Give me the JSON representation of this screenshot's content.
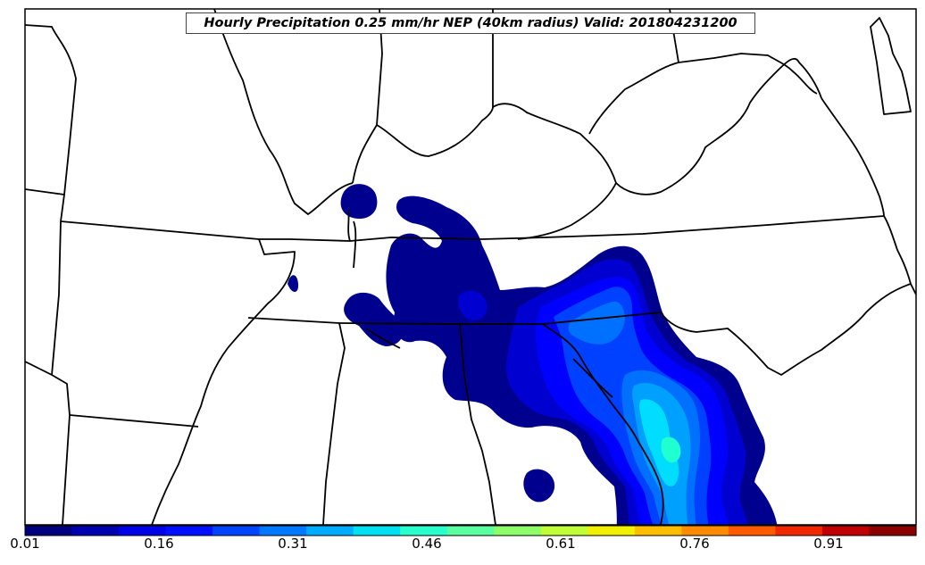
{
  "title": "Hourly Precipitation 0.25 mm/hr NEP (40km radius) Valid: 201804231200",
  "colorbar": {
    "colors": [
      "#00007f",
      "#0000b0",
      "#0000e6",
      "#0010ff",
      "#0044ff",
      "#0078ff",
      "#00acff",
      "#00e0f0",
      "#29ffce",
      "#5affa0",
      "#8dff6a",
      "#c0ff37",
      "#f0f000",
      "#ffbf00",
      "#ff8c00",
      "#ff5a00",
      "#f02800",
      "#c00000",
      "#8b0000"
    ],
    "ticks": [
      "0.01",
      "0.16",
      "0.31",
      "0.46",
      "0.61",
      "0.76",
      "0.91"
    ]
  },
  "map_layers": {
    "base": "white land with black state boundaries and coastlines",
    "fill_levels": [
      "#00008f",
      "#0000d0",
      "#0000ff",
      "#0040ff",
      "#0070ff",
      "#00a0ff",
      "#00ddff",
      "#20ffd0"
    ]
  }
}
